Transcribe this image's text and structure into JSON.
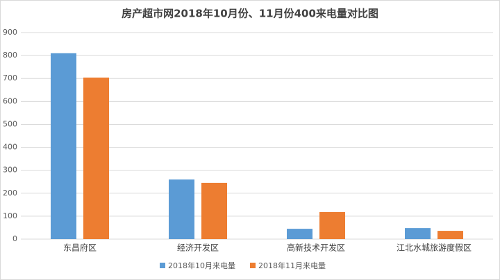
{
  "chart_data": {
    "type": "bar",
    "title": "房产超市网2018年10月份、11月份400来电量对比图",
    "categories": [
      "东昌府区",
      "经济开发区",
      "高新技术开发区",
      "江北水城旅游度假区"
    ],
    "series": [
      {
        "name": "2018年10月来电量",
        "color": "#5b9bd5",
        "values": [
          810,
          260,
          45,
          48
        ]
      },
      {
        "name": "2018年11月来电量",
        "color": "#ed7d31",
        "values": [
          704,
          245,
          118,
          36
        ]
      }
    ],
    "ylim": [
      0,
      900
    ],
    "yticks": [
      0,
      100,
      200,
      300,
      400,
      500,
      600,
      700,
      800,
      900
    ],
    "grid": true
  }
}
